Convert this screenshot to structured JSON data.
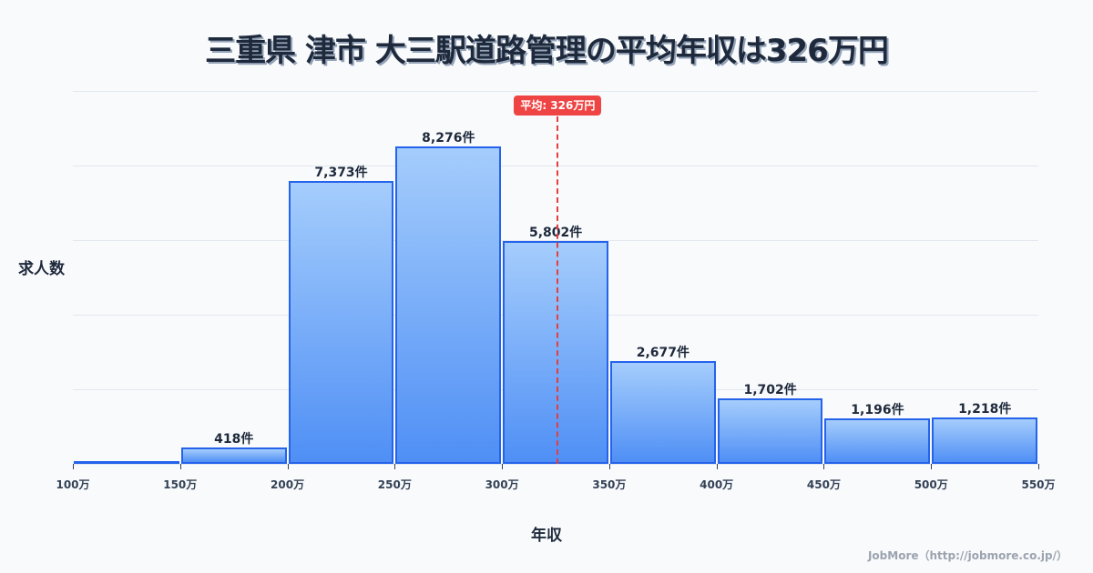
{
  "title": "三重県 津市 大三駅道路管理の平均年収は326万円",
  "ylabel": "求人数",
  "xlabel": "年収",
  "mean_badge": "平均: 326万円",
  "footer": "JobMore（http://jobmore.co.jp/）",
  "colors": {
    "bar_fill_top": "#a5cdfc",
    "bar_fill_bottom": "#4f8ff5",
    "bar_border": "#2563eb",
    "mean": "#ef4444",
    "grid": "#e2e8f0"
  },
  "chart_data": {
    "type": "bar",
    "title": "三重県 津市 大三駅道路管理の平均年収は326万円",
    "xlabel": "年収",
    "ylabel": "求人数",
    "categories": [
      "100-150万",
      "150-200万",
      "200-250万",
      "250-300万",
      "300-350万",
      "350-400万",
      "400-450万",
      "450-500万",
      "500-550万"
    ],
    "values": [
      0,
      418,
      7373,
      8276,
      5802,
      2677,
      1702,
      1196,
      1218
    ],
    "value_labels": [
      "",
      "418件",
      "7,373件",
      "8,276件",
      "5,802件",
      "2,677件",
      "1,702件",
      "1,196件",
      "1,218件"
    ],
    "x_ticks": [
      "100万",
      "150万",
      "200万",
      "250万",
      "300万",
      "350万",
      "400万",
      "450万",
      "500万",
      "550万"
    ],
    "mean": 326,
    "mean_label": "平均: 326万円",
    "grid": true,
    "legend": "none"
  }
}
